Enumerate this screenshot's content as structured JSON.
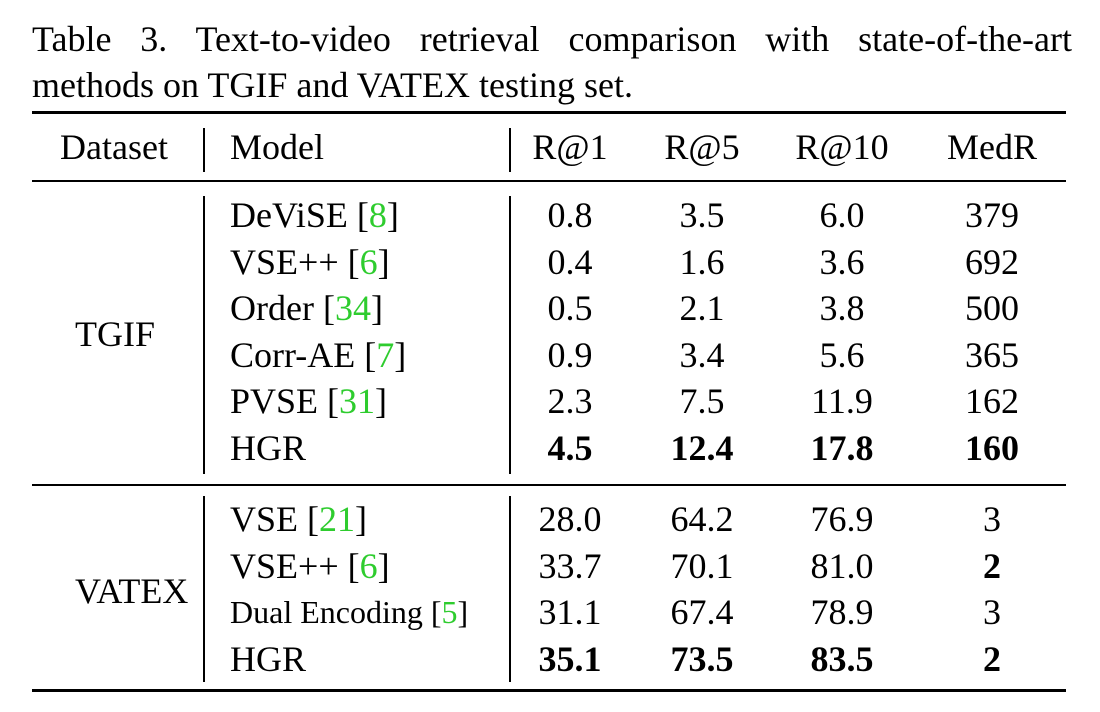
{
  "caption": "Table 3. Text-to-video retrieval comparison with state-of-the-art methods on TGIF and VATEX testing set.",
  "headers": {
    "dataset": "Dataset",
    "model": "Model",
    "r1": "R@1",
    "r5": "R@5",
    "r10": "R@10",
    "medr": "MedR"
  },
  "groups": [
    {
      "dataset": "TGIF",
      "rows": [
        {
          "model": "DeViSE",
          "ref": "8",
          "r1": "0.8",
          "r5": "3.5",
          "r10": "6.0",
          "medr": "379",
          "bold": []
        },
        {
          "model": "VSE++",
          "ref": "6",
          "r1": "0.4",
          "r5": "1.6",
          "r10": "3.6",
          "medr": "692",
          "bold": []
        },
        {
          "model": "Order",
          "ref": "34",
          "r1": "0.5",
          "r5": "2.1",
          "r10": "3.8",
          "medr": "500",
          "bold": []
        },
        {
          "model": "Corr-AE",
          "ref": "7",
          "r1": "0.9",
          "r5": "3.4",
          "r10": "5.6",
          "medr": "365",
          "bold": []
        },
        {
          "model": "PVSE",
          "ref": "31",
          "r1": "2.3",
          "r5": "7.5",
          "r10": "11.9",
          "medr": "162",
          "bold": []
        },
        {
          "model": "HGR",
          "ref": "",
          "r1": "4.5",
          "r5": "12.4",
          "r10": "17.8",
          "medr": "160",
          "bold": [
            "r1",
            "r5",
            "r10",
            "medr"
          ]
        }
      ]
    },
    {
      "dataset": "VATEX",
      "rows": [
        {
          "model": "VSE",
          "ref": "21",
          "r1": "28.0",
          "r5": "64.2",
          "r10": "76.9",
          "medr": "3",
          "bold": []
        },
        {
          "model": "VSE++",
          "ref": "6",
          "r1": "33.7",
          "r5": "70.1",
          "r10": "81.0",
          "medr": "2",
          "bold": [
            "medr"
          ]
        },
        {
          "model": "Dual Encoding",
          "ref": "5",
          "r1": "31.1",
          "r5": "67.4",
          "r10": "78.9",
          "medr": "3",
          "bold": [],
          "small": true
        },
        {
          "model": "HGR",
          "ref": "",
          "r1": "35.1",
          "r5": "73.5",
          "r10": "83.5",
          "medr": "2",
          "bold": [
            "r1",
            "r5",
            "r10",
            "medr"
          ]
        }
      ]
    }
  ]
}
